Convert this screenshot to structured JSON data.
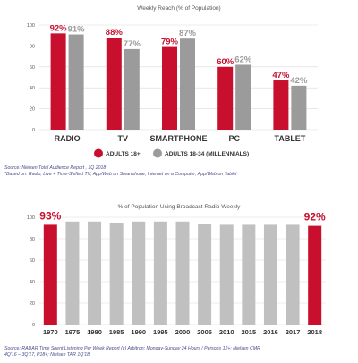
{
  "colors": {
    "red": "#c8102e",
    "gray": "#9b9b9b"
  },
  "chart_data": [
    {
      "type": "bar",
      "title": "Weekly Reach (% of Population)",
      "categories": [
        "RADIO",
        "TV",
        "SMARTPHONE",
        "PC",
        "TABLET"
      ],
      "series": [
        {
          "name": "ADULTS 18+",
          "values": [
            92,
            88,
            79,
            60,
            47
          ],
          "labels": [
            "92%",
            "88%",
            "79%",
            "60%",
            "47%"
          ]
        },
        {
          "name": "ADULTS 18-34 (MILLENNIALS)",
          "values": [
            91,
            77,
            87,
            62,
            42
          ],
          "labels": [
            "91%",
            "77%",
            "87%",
            "62%",
            "42%"
          ]
        }
      ],
      "yticks": [
        "0",
        "20",
        "40",
        "60",
        "80",
        "100"
      ],
      "ylim": [
        0,
        100
      ],
      "grid": true,
      "legend": "bottom",
      "source_lines": [
        "Source: Nielsen Total Audience Report , 1Q 2018",
        "*Based on: Radio; Live + Time-Shifted TV; App/Web on Smartphone; Internet on a Computer; App/Web on Tablet"
      ]
    },
    {
      "type": "bar",
      "title": "% of Population Using Broadcast Radio Weekly",
      "categories": [
        "1970",
        "1975",
        "1980",
        "1985",
        "1990",
        "1995",
        "2000",
        "2005",
        "2010",
        "2015",
        "2016",
        "2017",
        "2018"
      ],
      "values": [
        93,
        96,
        96,
        95,
        96,
        96,
        96,
        94,
        93,
        93,
        93,
        93,
        92
      ],
      "highlight": [
        "1970",
        "2018"
      ],
      "value_labels": {
        "first": "93%",
        "last": "92%"
      },
      "yticks": [
        "0",
        "20",
        "40",
        "60",
        "80",
        "100"
      ],
      "ylim": [
        0,
        100
      ],
      "grid": true,
      "source_lines": [
        "Source: RADAR Time Spent Listening Per Week Report (c) Arbitron;  Monday-Sunday 24 Hours / Persons 12+; Nielsen CMR",
        "4Q'16 – 3Q'17, P18+;  Nielsen TAR 1Q'18"
      ]
    }
  ]
}
